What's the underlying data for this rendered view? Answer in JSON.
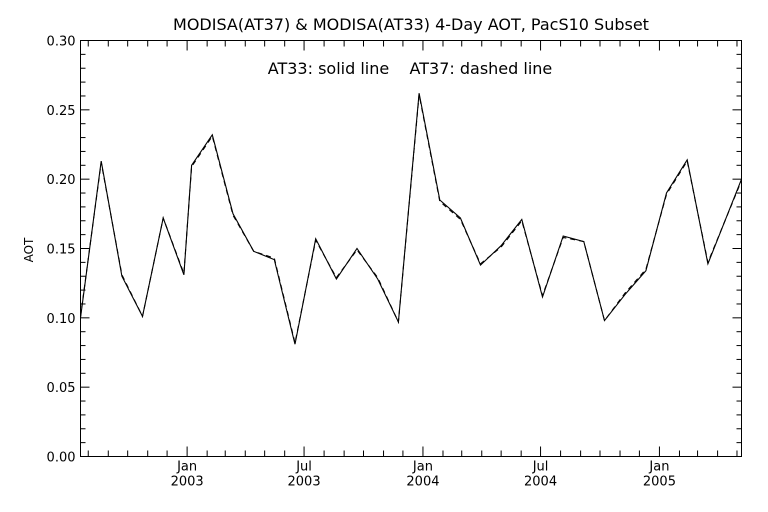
{
  "chart_data": {
    "type": "line",
    "title": "MODISA(AT37) & MODISA(AT33) 4-Day AOT, PacS10 Subset",
    "annotation": "AT33: solid line    AT37: dashed line",
    "xlabel": "",
    "ylabel": "AOT",
    "ylim": [
      0.0,
      0.3
    ],
    "xlim": [
      "2002-07-20",
      "2005-05-08"
    ],
    "y_ticks": [
      "0.00",
      "0.05",
      "0.10",
      "0.15",
      "0.20",
      "0.25",
      "0.30"
    ],
    "x_tick_labels": [
      {
        "month": "Jan",
        "year": "2003",
        "date": "2003-01-01"
      },
      {
        "month": "Jul",
        "year": "2003",
        "date": "2003-07-01"
      },
      {
        "month": "Jan",
        "year": "2004",
        "date": "2004-01-01"
      },
      {
        "month": "Jul",
        "year": "2004",
        "date": "2004-07-01"
      },
      {
        "month": "Jan",
        "year": "2005",
        "date": "2005-01-01"
      }
    ],
    "grid": false,
    "series": [
      {
        "name": "AT33",
        "style": "solid",
        "x": [
          "2002-07-20",
          "2002-08-21",
          "2002-09-22",
          "2002-10-24",
          "2002-11-25",
          "2002-12-27",
          "2003-01-08",
          "2003-02-09",
          "2003-03-13",
          "2003-04-14",
          "2003-05-16",
          "2003-06-17",
          "2003-07-19",
          "2003-08-20",
          "2003-09-21",
          "2003-10-23",
          "2003-11-24",
          "2003-12-26",
          "2004-01-27",
          "2004-02-28",
          "2004-03-30",
          "2004-05-01",
          "2004-06-02",
          "2004-07-04",
          "2004-08-05",
          "2004-09-06",
          "2004-10-08",
          "2004-11-09",
          "2004-12-11",
          "2005-01-12",
          "2005-02-13",
          "2005-03-17",
          "2005-05-08"
        ],
        "values": [
          0.1,
          0.213,
          0.13,
          0.101,
          0.172,
          0.131,
          0.21,
          0.232,
          0.175,
          0.148,
          0.142,
          0.081,
          0.157,
          0.128,
          0.15,
          0.128,
          0.097,
          0.262,
          0.185,
          0.172,
          0.138,
          0.152,
          0.171,
          0.115,
          0.159,
          0.155,
          0.098,
          0.117,
          0.134,
          0.19,
          0.214,
          0.139,
          0.2
        ]
      },
      {
        "name": "AT37",
        "style": "dashed",
        "x": [
          "2002-07-20",
          "2002-08-21",
          "2002-09-22",
          "2002-10-24",
          "2002-11-25",
          "2002-12-27",
          "2003-01-08",
          "2003-02-09",
          "2003-03-13",
          "2003-04-14",
          "2003-05-16",
          "2003-06-17",
          "2003-07-19",
          "2003-08-20",
          "2003-09-21",
          "2003-10-23",
          "2003-11-24",
          "2003-12-26",
          "2004-01-27",
          "2004-02-28",
          "2004-03-30",
          "2004-05-01",
          "2004-06-02",
          "2004-07-04",
          "2004-08-05",
          "2004-09-06",
          "2004-10-08",
          "2004-11-09",
          "2004-12-11",
          "2005-01-12",
          "2005-02-13",
          "2005-03-17",
          "2005-05-08"
        ],
        "values": [
          0.101,
          0.212,
          0.131,
          0.101,
          0.172,
          0.132,
          0.209,
          0.231,
          0.174,
          0.148,
          0.143,
          0.082,
          0.156,
          0.129,
          0.149,
          0.129,
          0.097,
          0.261,
          0.184,
          0.171,
          0.139,
          0.151,
          0.17,
          0.116,
          0.158,
          0.155,
          0.098,
          0.118,
          0.135,
          0.189,
          0.213,
          0.14,
          0.199
        ]
      }
    ]
  }
}
